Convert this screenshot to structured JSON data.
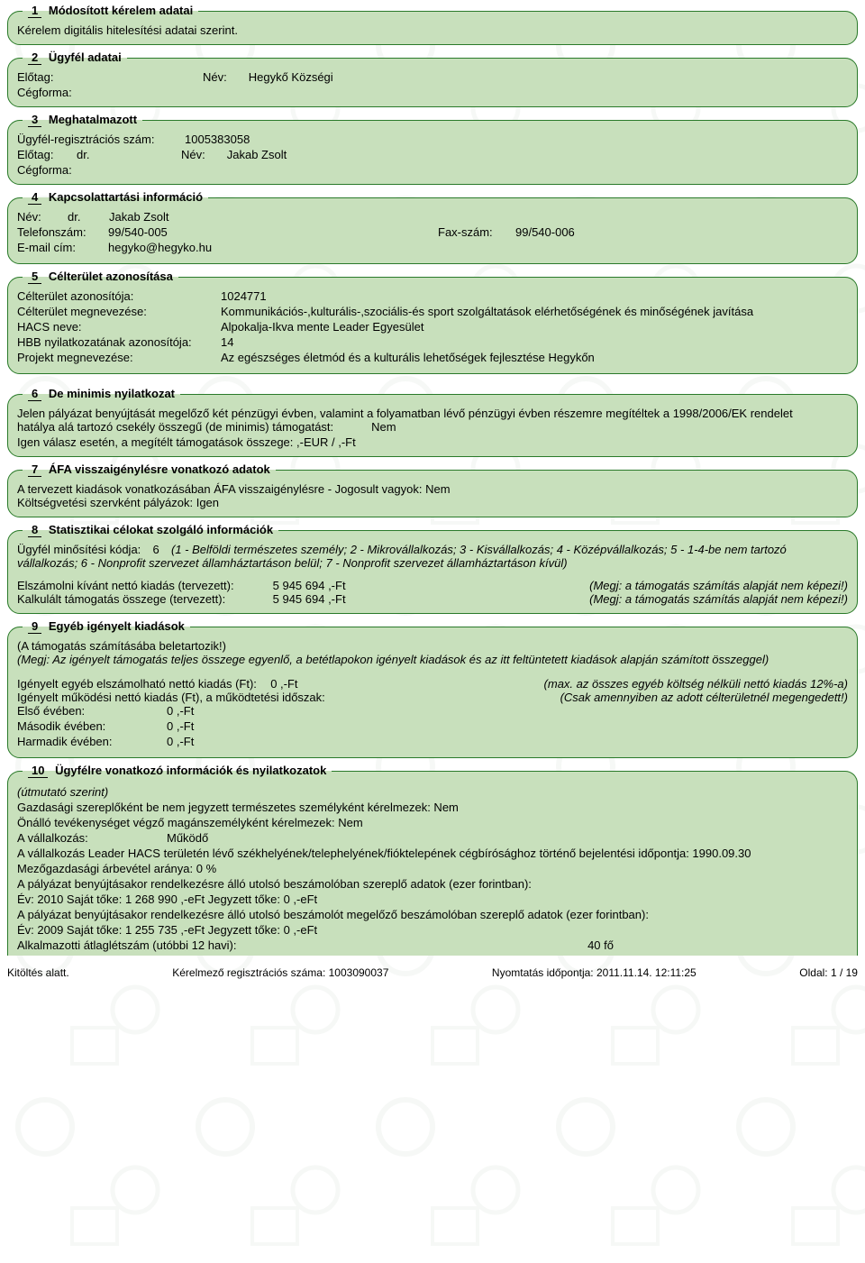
{
  "section1": {
    "num": "1",
    "title": "Módosított kérelem adatai",
    "line": "Kérelem digitális hitelesítési adatai szerint."
  },
  "section2": {
    "num": "2",
    "title": "Ügyfél adatai",
    "elotag_label": "Előtag:",
    "nev_label": "Név:",
    "nev_value": "Hegykő Községi",
    "cegforma_label": "Cégforma:"
  },
  "section3": {
    "num": "3",
    "title": "Meghatalmazott",
    "reg_label": "Ügyfél-regisztrációs szám:",
    "reg_value": "1005383058",
    "elotag_label": "Előtag:",
    "elotag_value": "dr.",
    "nev_label": "Név:",
    "nev_value": "Jakab Zsolt",
    "cegforma_label": "Cégforma:"
  },
  "section4": {
    "num": "4",
    "title": "Kapcsolattartási információ",
    "nev_label": "Név:",
    "nev_prefix": "dr.",
    "nev_value": "Jakab Zsolt",
    "tel_label": "Telefonszám:",
    "tel_value": "99/540-005",
    "fax_label": "Fax-szám:",
    "fax_value": "99/540-006",
    "email_label": "E-mail cím:",
    "email_value": "hegyko@hegyko.hu"
  },
  "section5": {
    "num": "5",
    "title": "Célterület azonosítása",
    "rows": [
      {
        "label": "Célterület azonosítója:",
        "value": "1024771"
      },
      {
        "label": "Célterület megnevezése:",
        "value": "Kommunikációs-,kulturális-,szociális-és sport szolgáltatások elérhetőségének és minőségének javítása"
      },
      {
        "label": "HACS neve:",
        "value": "Alpokalja-Ikva mente Leader Egyesület"
      },
      {
        "label": "HBB nyilatkozatának azonosítója:",
        "value": "14"
      },
      {
        "label": "Projekt megnevezése:",
        "value": "Az egészséges életmód és a kulturális lehetőségek fejlesztése Hegykőn"
      }
    ]
  },
  "section6": {
    "num": "6",
    "title": "De minimis nyilatkozat",
    "line1": "Jelen pályázat benyújtását megelőző két pénzügyi évben, valamint a folyamatban lévő pénzügyi évben részemre megítéltek a 1998/2006/EK rendelet",
    "line2a": "hatálya alá tartozó csekély összegű (de minimis) támogatást:",
    "line2b": "Nem",
    "line3": "Igen válasz esetén, a megítélt támogatások összege:   ,-EUR /   ,-Ft"
  },
  "section7": {
    "num": "7",
    "title": "ÁFA visszaigénylésre vonatkozó adatok",
    "line1": "A tervezett kiadások vonatkozásában ÁFA visszaigénylésre - Jogosult vagyok:  Nem",
    "line2": "Költségvetési szervként pályázok:  Igen"
  },
  "section8": {
    "num": "8",
    "title": "Statisztikai célokat szolgáló információk",
    "kod_label": "Ügyfél minősítési kódja:",
    "kod_value": "6",
    "kod_note": "(1 - Belföldi természetes személy; 2 - Mikrovállalkozás; 3 - Kisvállalkozás; 4 - Középvállalkozás; 5 - 1-4-be nem tartozó vállalkozás; 6 - Nonprofit szervezet államháztartáson belül; 7 - Nonprofit szervezet államháztartáson kívül)",
    "line_a_label": "Elszámolni kívánt nettó kiadás (tervezett):",
    "line_a_value": "5 945 694 ,-Ft",
    "line_b_label": "Kalkulált támogatás összege (tervezett):",
    "line_b_value": "5 945 694 ,-Ft",
    "note": "(Megj: a támogatás számítás alapját nem képezi!)"
  },
  "section9": {
    "num": "9",
    "title": "Egyéb igényelt kiadások",
    "line1": "(A támogatás számításába beletartozik!)",
    "line2": "(Megj: Az igényelt támogatás teljes összege egyenlő, a betétlapokon igényelt kiadások és az itt feltüntetett kiadások alapján számított összeggel)",
    "r1_label": "Igényelt egyéb elszámolható nettó kiadás (Ft):",
    "r1_value": "0 ,-Ft",
    "r1_note": "(max. az összes egyéb költség nélküli nettó kiadás 12%-a)",
    "r2_label": "Igényelt működési nettó kiadás (Ft), a működtetési időszak:",
    "r2_note": "(Csak amennyiben az adott célterületnél megengedett!)",
    "y1_label": "Első évében:",
    "y1_value": "0 ,-Ft",
    "y2_label": "Második évében:",
    "y2_value": "0 ,-Ft",
    "y3_label": "Harmadik évében:",
    "y3_value": "0 ,-Ft"
  },
  "section10": {
    "num": "10",
    "title": "Ügyfélre vonatkozó információk és nyilatkozatok",
    "hint": "(útmutató szerint)",
    "l1": "Gazdasági szereplőként be nem jegyzett természetes személyként kérelmezek:  Nem",
    "l2": "Önálló tevékenységet végző magánszemélyként kérelmezek:  Nem",
    "l3a": "A vállalkozás:",
    "l3b": "Működő",
    "l4": "A vállalkozás Leader HACS területén lévő székhelyének/telephelyének/fióktelepének cégbírósághoz történő bejelentési időpontja:  1990.09.30",
    "l5": "Mezőgazdasági árbevétel aránya:  0  %",
    "l6": "A pályázat benyújtásakor rendelkezésre álló utolsó beszámolóban szereplő adatok (ezer forintban):",
    "l7": "Év:  2010  Saját tőke:  1 268 990 ,-eFt Jegyzett tőke:  0 ,-eFt",
    "l8": "A pályázat benyújtásakor rendelkezésre álló utolsó beszámolót megelőző beszámolóban szereplő adatok (ezer forintban):",
    "l9": "Év:  2009  Saját tőke:  1 255 735 ,-eFt Jegyzett tőke:  0 ,-eFt",
    "l10a": "Alkalmazotti átlaglétszám (utóbbi 12 havi):",
    "l10b": "40 fő"
  },
  "footer": {
    "left": "Kitöltés alatt.",
    "mid1": "Kérelmező regisztrációs száma:  1003090037",
    "mid2": "Nyomtatás időpontja:  2011.11.14.   12:11:25",
    "right": "Oldal:  1  /  19"
  }
}
